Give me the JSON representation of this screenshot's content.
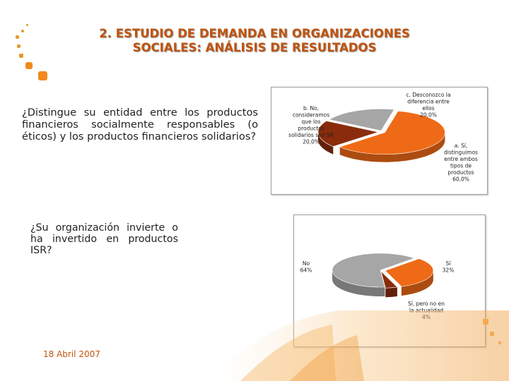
{
  "slide": {
    "title_line1": "2. ESTUDIO DE DEMANDA EN ORGANIZACIONES",
    "title_line2": "SOCIALES: ANÁLISIS DE RESULTADOS",
    "question1": "¿Distingue su entidad entre los productos financieros socialmente responsables (o éticos) y los productos financieros solidarios?",
    "question2": "¿Su organización invierte o ha invertido en productos ISR?",
    "date": "18 Abril 2007"
  },
  "colors": {
    "accent": "#c0540f",
    "dots": "#e39a2a",
    "pie_orange": "#ef6a16",
    "pie_brown": "#8a2c0c",
    "pie_gray": "#a6a6a6"
  },
  "chart_data": [
    {
      "type": "pie",
      "title": "",
      "slices": [
        {
          "label_lines": [
            "a. Sí,",
            "distinguimos",
            "entre ambos",
            "tipos de",
            "productos"
          ],
          "value_label": "60,0%",
          "value": 60.0,
          "color": "#ef6a16"
        },
        {
          "label_lines": [
            "b. No,",
            "consideramos",
            "que los",
            "productos",
            "solidarios son SR"
          ],
          "value_label": "20,0%",
          "value": 20.0,
          "color": "#8a2c0c"
        },
        {
          "label_lines": [
            "c. Desconozco la",
            "diferencia entre",
            "ellos"
          ],
          "value_label": "20,0%",
          "value": 20.0,
          "color": "#a6a6a6"
        }
      ]
    },
    {
      "type": "pie",
      "title": "",
      "slices": [
        {
          "label_lines": [
            "Sí"
          ],
          "value_label": "32%",
          "value": 32,
          "color": "#ef6a16"
        },
        {
          "label_lines": [
            "Sí, pero no en",
            "la actualidad"
          ],
          "value_label": "4%",
          "value": 4,
          "color": "#8a2c0c"
        },
        {
          "label_lines": [
            "No"
          ],
          "value_label": "64%",
          "value": 64,
          "color": "#a6a6a6"
        }
      ]
    }
  ]
}
